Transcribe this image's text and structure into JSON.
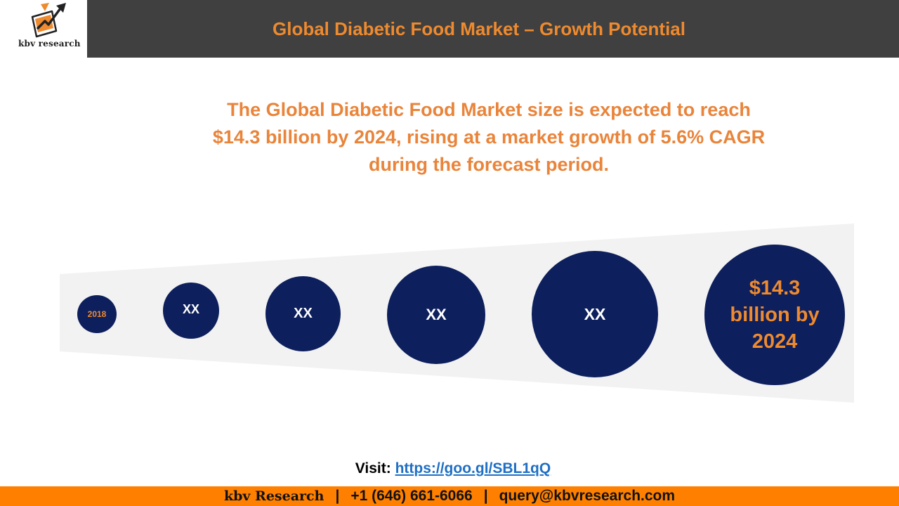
{
  "brand": {
    "logo_text": "kbv research"
  },
  "header": {
    "title": "Global Diabetic Food Market – Growth Potential"
  },
  "headline": {
    "line1": "The Global Diabetic Food Market size is expected to reach",
    "line2": "$14.3 billion by 2024, rising at a market growth of 5.6% CAGR",
    "line3": "during the forecast period."
  },
  "bubbles": [
    {
      "label": "2018"
    },
    {
      "label": "XX"
    },
    {
      "label": "XX"
    },
    {
      "label": "XX"
    },
    {
      "label": "XX"
    },
    {
      "label": "$14.3 billion by 2024"
    }
  ],
  "visit": {
    "label": "Visit:",
    "url": "https://goo.gl/SBL1qQ"
  },
  "footer": {
    "brand": "kbv Research",
    "separator": "|",
    "phone": "+1 (646) 661-6066",
    "email": "query@kbvresearch.com"
  },
  "colors": {
    "accent_orange": "#ee8a2f",
    "header_gray": "#404040",
    "bubble_navy": "#0d1f5c",
    "band_gray": "#f2f2f2",
    "footer_orange": "#ff8000",
    "link_blue": "#1f6fc4"
  },
  "icons": {
    "logo": "tablet-arrow-logo-icon"
  }
}
